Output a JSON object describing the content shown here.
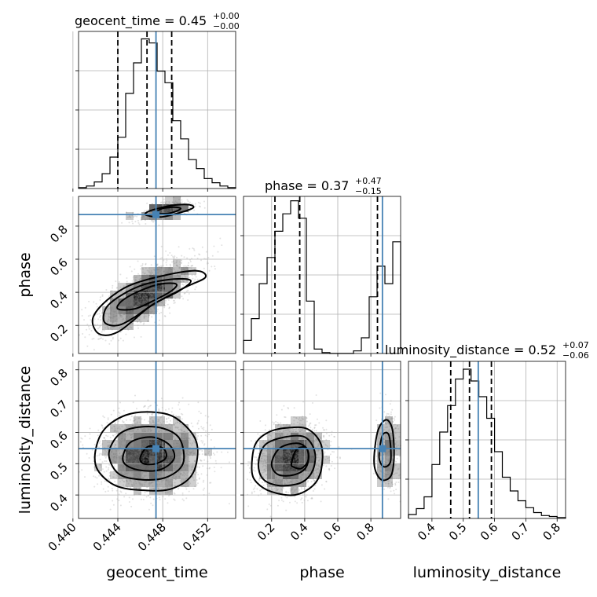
{
  "chart_data": {
    "type": "corner",
    "parameters": [
      "geocent_time",
      "phase",
      "luminosity_distance"
    ],
    "truths": {
      "geocent_time": 0.4474,
      "phase": 0.87,
      "luminosity_distance": 0.548
    },
    "colors": {
      "truth": "#4682b4",
      "line": "#000000",
      "grid": "#b0b0b0",
      "samples": "#7a7a7a"
    },
    "titles": [
      {
        "param": "geocent_time",
        "main": "geocent_time = 0.45",
        "plus": "+0.00",
        "minus": "−0.00"
      },
      {
        "param": "phase",
        "main": "phase = 0.37",
        "plus": "+0.47",
        "minus": "−0.15"
      },
      {
        "param": "luminosity_distance",
        "main": "luminosity_distance = 0.52",
        "plus": "+0.07",
        "minus": "−0.06"
      }
    ],
    "axes": {
      "geocent_time": {
        "range": [
          0.4405,
          0.4545
        ],
        "ticks": [
          0.44,
          0.444,
          0.448,
          0.452
        ],
        "tick_labels": [
          "0.440",
          "0.444",
          "0.448",
          "0.452"
        ],
        "label": "geocent_time"
      },
      "phase": {
        "range": [
          0.03,
          0.98
        ],
        "ticks": [
          0.2,
          0.4,
          0.6,
          0.8
        ],
        "tick_labels": [
          "0.2",
          "0.4",
          "0.6",
          "0.8"
        ],
        "label": "phase"
      },
      "luminosity_distance": {
        "range": [
          0.325,
          0.827
        ],
        "ticks": [
          0.4,
          0.5,
          0.6,
          0.7,
          0.8
        ],
        "tick_labels": [
          "0.4",
          "0.5",
          "0.6",
          "0.7",
          "0.8"
        ],
        "label": "luminosity_distance"
      }
    },
    "histograms": [
      {
        "param": "geocent_time",
        "bin_edges": [
          0.4405,
          0.4412,
          0.4419,
          0.4426,
          0.4433,
          0.444,
          0.4447,
          0.4454,
          0.4461,
          0.4468,
          0.4475,
          0.4482,
          0.4489,
          0.4496,
          0.4503,
          0.451,
          0.4517,
          0.4524,
          0.4531,
          0.4538,
          0.4545
        ],
        "counts": [
          1,
          3,
          8,
          18,
          38,
          62,
          115,
          152,
          181,
          176,
          142,
          128,
          82,
          60,
          35,
          24,
          12,
          7,
          3,
          1
        ],
        "max": 190,
        "quantiles": [
          0.444,
          0.4466,
          0.4488
        ]
      },
      {
        "param": "phase",
        "bin_edges": [
          0.03,
          0.0775,
          0.125,
          0.1725,
          0.22,
          0.2675,
          0.315,
          0.3625,
          0.41,
          0.4575,
          0.505,
          0.5525,
          0.6,
          0.6475,
          0.695,
          0.7425,
          0.79,
          0.8375,
          0.885,
          0.9325,
          0.98
        ],
        "counts": [
          15,
          40,
          80,
          110,
          140,
          160,
          175,
          155,
          60,
          5,
          1,
          0,
          0,
          0,
          3,
          18,
          65,
          100,
          80,
          128
        ],
        "max": 180,
        "quantiles": [
          0.22,
          0.37,
          0.84
        ]
      },
      {
        "param": "luminosity_distance",
        "bin_edges": [
          0.325,
          0.35,
          0.375,
          0.4,
          0.425,
          0.45,
          0.475,
          0.5,
          0.525,
          0.55,
          0.575,
          0.6,
          0.625,
          0.65,
          0.675,
          0.7,
          0.725,
          0.75,
          0.775,
          0.8,
          0.827
        ],
        "counts": [
          4,
          10,
          22,
          55,
          88,
          115,
          142,
          152,
          140,
          124,
          102,
          68,
          42,
          28,
          18,
          11,
          6,
          3,
          2,
          1
        ],
        "max": 160,
        "quantiles": [
          0.46,
          0.52,
          0.59
        ]
      }
    ],
    "pairs": [
      {
        "x": "geocent_time",
        "y": "phase",
        "blobs": [
          {
            "cx": 0.4465,
            "cy": 0.385,
            "sx": 0.0021,
            "sy": 0.105,
            "rho": 0.72,
            "n": 1900
          },
          {
            "cx": 0.4483,
            "cy": 0.895,
            "sx": 0.0013,
            "sy": 0.03,
            "rho": 0.55,
            "n": 450
          }
        ],
        "contours": [
          [
            [
              0.442,
              0.17
            ],
            [
              0.4428,
              0.14
            ],
            [
              0.444,
              0.16
            ],
            [
              0.4452,
              0.22
            ],
            [
              0.447,
              0.32
            ],
            [
              0.45,
              0.43
            ],
            [
              0.4518,
              0.49
            ],
            [
              0.451,
              0.53
            ],
            [
              0.448,
              0.5
            ],
            [
              0.445,
              0.44
            ],
            [
              0.443,
              0.35
            ],
            [
              0.4418,
              0.25
            ]
          ],
          [
            [
              0.4428,
              0.22
            ],
            [
              0.444,
              0.2
            ],
            [
              0.4455,
              0.25
            ],
            [
              0.4472,
              0.33
            ],
            [
              0.4495,
              0.41
            ],
            [
              0.4505,
              0.47
            ],
            [
              0.449,
              0.48
            ],
            [
              0.4465,
              0.45
            ],
            [
              0.4445,
              0.39
            ],
            [
              0.443,
              0.31
            ]
          ],
          [
            [
              0.444,
              0.3
            ],
            [
              0.4455,
              0.3
            ],
            [
              0.4472,
              0.35
            ],
            [
              0.4488,
              0.41
            ],
            [
              0.4492,
              0.45
            ],
            [
              0.4478,
              0.45
            ],
            [
              0.446,
              0.41
            ],
            [
              0.4444,
              0.35
            ]
          ],
          [
            [
              0.4466,
              0.865
            ],
            [
              0.4478,
              0.855
            ],
            [
              0.4492,
              0.875
            ],
            [
              0.4507,
              0.91
            ],
            [
              0.4503,
              0.93
            ],
            [
              0.4488,
              0.925
            ],
            [
              0.4472,
              0.9
            ],
            [
              0.4465,
              0.88
            ]
          ],
          [
            [
              0.4475,
              0.88
            ],
            [
              0.4487,
              0.88
            ],
            [
              0.4496,
              0.905
            ],
            [
              0.449,
              0.915
            ],
            [
              0.4479,
              0.905
            ]
          ]
        ]
      },
      {
        "x": "geocent_time",
        "y": "luminosity_distance",
        "blobs": [
          {
            "cx": 0.447,
            "cy": 0.53,
            "sx": 0.0022,
            "sy": 0.06,
            "rho": 0.0,
            "n": 2400
          }
        ],
        "contours": [
          [
            [
              0.442,
              0.54
            ],
            [
              0.4428,
              0.61
            ],
            [
              0.4447,
              0.655
            ],
            [
              0.447,
              0.665
            ],
            [
              0.4492,
              0.645
            ],
            [
              0.451,
              0.57
            ],
            [
              0.4507,
              0.47
            ],
            [
              0.4488,
              0.42
            ],
            [
              0.4462,
              0.415
            ],
            [
              0.4438,
              0.43
            ],
            [
              0.4422,
              0.48
            ]
          ],
          [
            [
              0.4432,
              0.53
            ],
            [
              0.444,
              0.59
            ],
            [
              0.4455,
              0.615
            ],
            [
              0.4478,
              0.615
            ],
            [
              0.4495,
              0.58
            ],
            [
              0.4498,
              0.5
            ],
            [
              0.4482,
              0.455
            ],
            [
              0.4458,
              0.45
            ],
            [
              0.444,
              0.47
            ]
          ],
          [
            [
              0.4445,
              0.53
            ],
            [
              0.4452,
              0.57
            ],
            [
              0.447,
              0.585
            ],
            [
              0.4486,
              0.56
            ],
            [
              0.449,
              0.515
            ],
            [
              0.4477,
              0.48
            ],
            [
              0.4458,
              0.48
            ],
            [
              0.4446,
              0.5
            ]
          ],
          [
            [
              0.446,
              0.52
            ],
            [
              0.4467,
              0.555
            ],
            [
              0.448,
              0.55
            ],
            [
              0.4483,
              0.52
            ],
            [
              0.4474,
              0.5
            ],
            [
              0.4463,
              0.5
            ]
          ]
        ]
      },
      {
        "x": "phase",
        "y": "luminosity_distance",
        "blobs": [
          {
            "cx": 0.32,
            "cy": 0.515,
            "sx": 0.1,
            "sy": 0.055,
            "rho": 0.15,
            "n": 1900
          },
          {
            "cx": 0.9,
            "cy": 0.545,
            "sx": 0.035,
            "sy": 0.06,
            "rho": 0.0,
            "n": 450
          }
        ],
        "contours": [
          [
            [
              0.08,
              0.48
            ],
            [
              0.1,
              0.56
            ],
            [
              0.18,
              0.6
            ],
            [
              0.3,
              0.615
            ],
            [
              0.42,
              0.61
            ],
            [
              0.5,
              0.56
            ],
            [
              0.5,
              0.48
            ],
            [
              0.45,
              0.43
            ],
            [
              0.34,
              0.4
            ],
            [
              0.2,
              0.41
            ],
            [
              0.11,
              0.44
            ]
          ],
          [
            [
              0.12,
              0.5
            ],
            [
              0.16,
              0.56
            ],
            [
              0.28,
              0.585
            ],
            [
              0.4,
              0.585
            ],
            [
              0.46,
              0.54
            ],
            [
              0.45,
              0.48
            ],
            [
              0.38,
              0.44
            ],
            [
              0.25,
              0.43
            ],
            [
              0.15,
              0.45
            ]
          ],
          [
            [
              0.2,
              0.5
            ],
            [
              0.25,
              0.55
            ],
            [
              0.36,
              0.565
            ],
            [
              0.42,
              0.54
            ],
            [
              0.41,
              0.49
            ],
            [
              0.34,
              0.465
            ],
            [
              0.24,
              0.465
            ]
          ],
          [
            [
              0.32,
              0.5
            ],
            [
              0.35,
              0.545
            ],
            [
              0.41,
              0.55
            ],
            [
              0.42,
              0.51
            ],
            [
              0.38,
              0.485
            ],
            [
              0.33,
              0.49
            ]
          ],
          [
            [
              0.82,
              0.5
            ],
            [
              0.84,
              0.6
            ],
            [
              0.89,
              0.64
            ],
            [
              0.93,
              0.61
            ],
            [
              0.94,
              0.52
            ],
            [
              0.92,
              0.46
            ],
            [
              0.86,
              0.45
            ]
          ],
          [
            [
              0.85,
              0.52
            ],
            [
              0.87,
              0.59
            ],
            [
              0.91,
              0.59
            ],
            [
              0.92,
              0.51
            ],
            [
              0.88,
              0.49
            ]
          ]
        ]
      }
    ]
  }
}
